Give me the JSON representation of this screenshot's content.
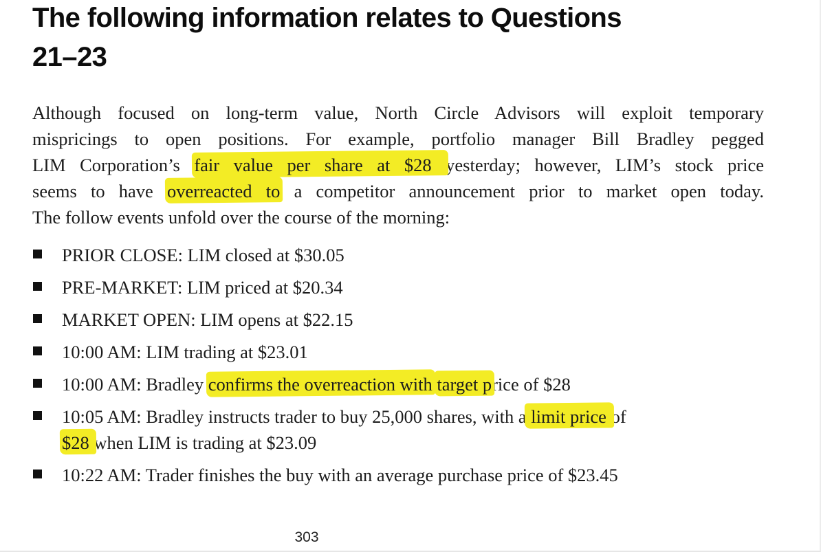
{
  "page": {
    "number": "303"
  },
  "colors": {
    "highlight": "#f3ec25",
    "text": "#1c1c1c",
    "heading_text": "#0d0d0d",
    "background": "#ffffff",
    "bullet": "#111111"
  },
  "heading": {
    "lines": [
      "The following information relates to Questions",
      "21–23"
    ]
  },
  "paragraph": {
    "lines": [
      {
        "justify": true,
        "segments": [
          {
            "t": "Although focused on long-term value, North Circle Advisors will exploit temporary",
            "h": false
          }
        ]
      },
      {
        "justify": true,
        "segments": [
          {
            "t": "mispricings to open positions. For example, portfolio manager Bill Bradley pegged",
            "h": false
          }
        ]
      },
      {
        "justify": true,
        "segments": [
          {
            "t": "LIM Corporation’s ",
            "h": false
          },
          {
            "t": "fair value per share at $28 ",
            "h": true
          },
          {
            "t": "yesterday; however, LIM’s stock price",
            "h": false
          }
        ]
      },
      {
        "justify": true,
        "segments": [
          {
            "t": "seems to have ",
            "h": false
          },
          {
            "t": "overreacted to",
            "h": true
          },
          {
            "t": " a competitor announcement prior to market open today.",
            "h": false
          }
        ]
      },
      {
        "justify": false,
        "segments": [
          {
            "t": "The follow events unfold over the course of the morning:",
            "h": false
          }
        ]
      }
    ]
  },
  "bullets": [
    {
      "lines": [
        [
          {
            "t": "PRIOR CLOSE: LIM closed at $30.05",
            "h": false
          }
        ]
      ]
    },
    {
      "lines": [
        [
          {
            "t": "PRE-MARKET: LIM priced at $20.34",
            "h": false
          }
        ]
      ]
    },
    {
      "lines": [
        [
          {
            "t": "MARKET OPEN: LIM opens at $22.15",
            "h": false
          }
        ]
      ]
    },
    {
      "lines": [
        [
          {
            "t": "10:00 AM: LIM trading at $23.01",
            "h": false
          }
        ]
      ]
    },
    {
      "lines": [
        [
          {
            "t": "10:00 AM: Bradley ",
            "h": false
          },
          {
            "t": "confirms the overreaction with",
            "h": true
          },
          {
            "t": " ",
            "h": false
          },
          {
            "t": "target p",
            "h": true
          },
          {
            "t": "rice of $28",
            "h": false
          }
        ]
      ]
    },
    {
      "lines": [
        [
          {
            "t": "10:05 AM: Bradley instructs trader to buy 25,000 shares, with a",
            "h": false
          },
          {
            "t": " limit price ",
            "h": true
          },
          {
            "t": "of",
            "h": false
          }
        ],
        [
          {
            "t": "$28 ",
            "h": true
          },
          {
            "t": "when LIM is trading at $23.09",
            "h": false
          }
        ]
      ]
    },
    {
      "lines": [
        [
          {
            "t": "10:22 AM: Trader finishes the buy with an average purchase price of $23.45",
            "h": false
          }
        ]
      ]
    }
  ]
}
